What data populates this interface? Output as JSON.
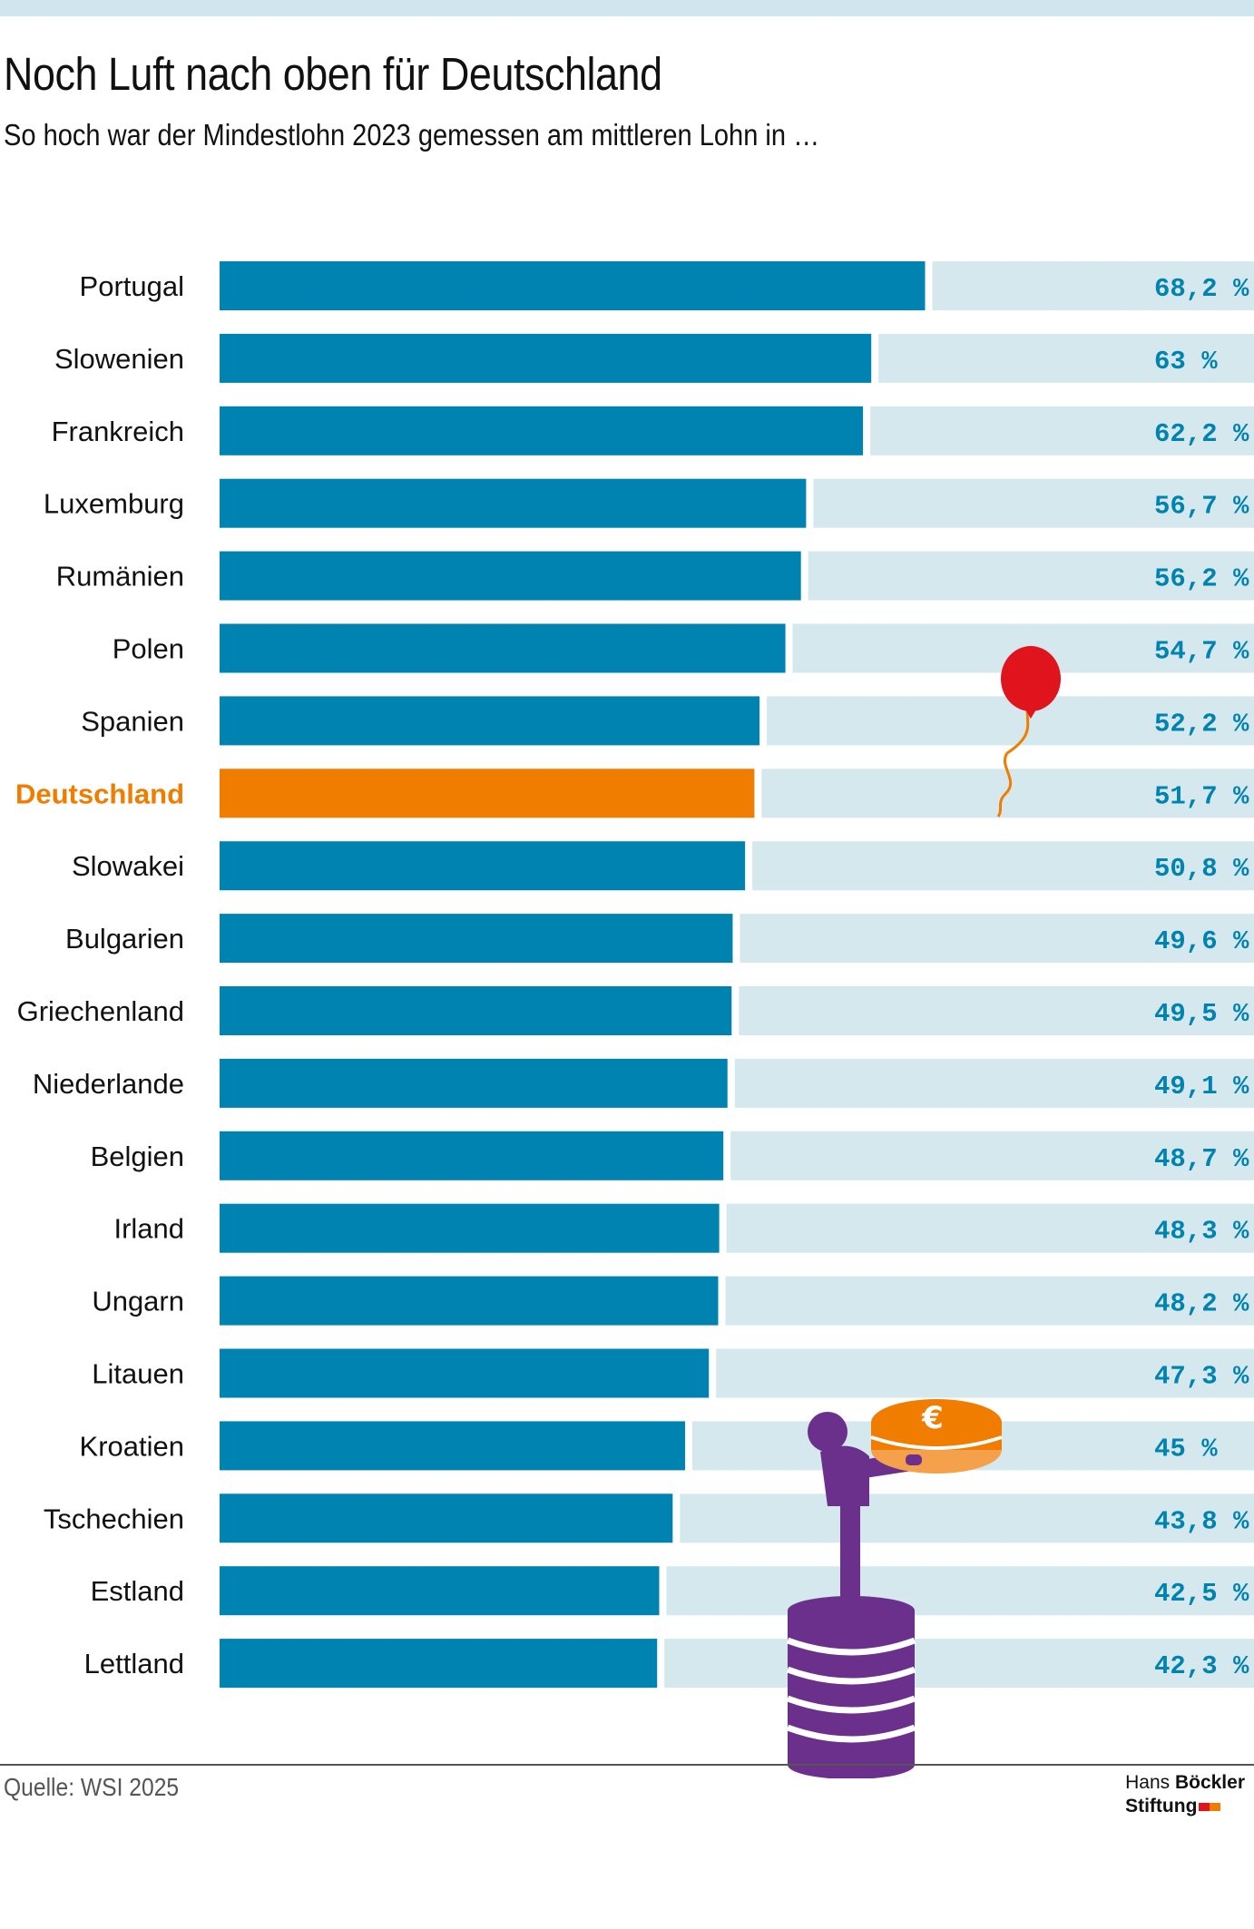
{
  "title": "Noch Luft nach oben für Deutschland",
  "subtitle": "So hoch war der Mindestlohn 2023 gemessen am mittleren Lohn in …",
  "source": "Quelle: WSI 2025",
  "logo": {
    "line1_a": "Hans ",
    "line1_b": "Böckler",
    "line2": "Stiftung"
  },
  "colors": {
    "bar": "#0083b0",
    "highlight": "#f07c00",
    "track": "#d5e8ee",
    "value_text": "#0083b0",
    "label_text": "#111111",
    "balloon": "#e0141d",
    "figure": "#6b2f8c",
    "coin": "#f07c00"
  },
  "icons": [
    "balloon-icon",
    "person-holding-euro-coins-icon"
  ],
  "chart_data": {
    "type": "bar",
    "orientation": "horizontal",
    "title": "Noch Luft nach oben für Deutschland",
    "subtitle": "So hoch war der Mindestlohn 2023 gemessen am mittleren Lohn in …",
    "xlim": [
      0,
      100
    ],
    "grid": false,
    "legend": "none",
    "highlight": "Deutschland",
    "categories": [
      "Portugal",
      "Slowenien",
      "Frankreich",
      "Luxemburg",
      "Rumänien",
      "Polen",
      "Spanien",
      "Deutschland",
      "Slowakei",
      "Bulgarien",
      "Griechenland",
      "Niederlande",
      "Belgien",
      "Irland",
      "Ungarn",
      "Litauen",
      "Kroatien",
      "Tschechien",
      "Estland",
      "Lettland"
    ],
    "values": [
      68.2,
      63,
      62.2,
      56.7,
      56.2,
      54.7,
      52.2,
      51.7,
      50.8,
      49.6,
      49.5,
      49.1,
      48.7,
      48.3,
      48.2,
      47.3,
      45,
      43.8,
      42.5,
      42.3
    ],
    "value_labels": [
      "68,2 %",
      "63 %",
      "62,2 %",
      "56,7 %",
      "56,2 %",
      "54,7 %",
      "52,2 %",
      "51,7 %",
      "50,8 %",
      "49,6 %",
      "49,5 %",
      "49,1 %",
      "48,7 %",
      "48,3 %",
      "48,2 %",
      "47,3 %",
      "45 %",
      "43,8 %",
      "42,5 %",
      "42,3 %"
    ]
  }
}
